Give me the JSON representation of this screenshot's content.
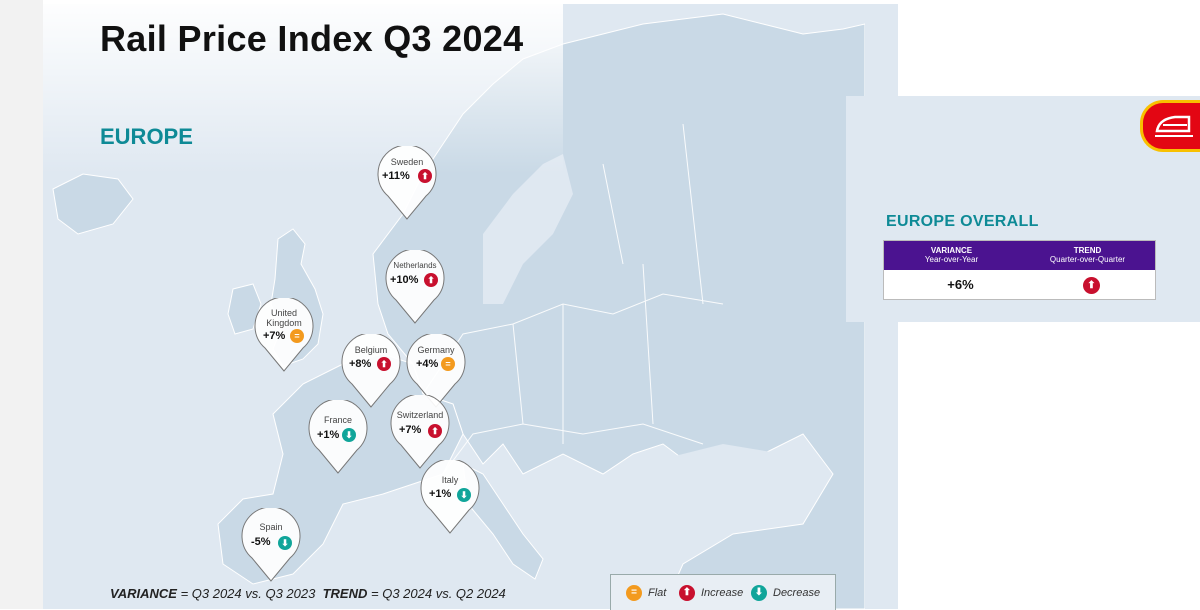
{
  "title": "Rail Price Index Q3 2024",
  "region": "EUROPE",
  "countries": [
    {
      "name": "Sweden",
      "variance": "+11%",
      "trend": "increase"
    },
    {
      "name": "Netherlands",
      "variance": "+10%",
      "trend": "increase"
    },
    {
      "name": "United Kingdom",
      "name_lines": [
        "United",
        "Kingdom"
      ],
      "variance": "+7%",
      "trend": "flat"
    },
    {
      "name": "Belgium",
      "variance": "+8%",
      "trend": "increase"
    },
    {
      "name": "Germany",
      "variance": "+4%",
      "trend": "flat"
    },
    {
      "name": "France",
      "variance": "+1%",
      "trend": "decrease"
    },
    {
      "name": "Switzerland",
      "variance": "+7%",
      "trend": "increase"
    },
    {
      "name": "Italy",
      "variance": "+1%",
      "trend": "decrease"
    },
    {
      "name": "Spain",
      "variance": "-5%",
      "trend": "decrease"
    }
  ],
  "footer": {
    "variance_label": "VARIANCE",
    "variance_def": "= Q3 2024 vs. Q3 2023",
    "trend_label": "TREND",
    "trend_def": "= Q3 2024 vs. Q2 2024"
  },
  "legend": {
    "flat": "Flat",
    "increase": "Increase",
    "decrease": "Decrease"
  },
  "overall": {
    "title": "EUROPE OVERALL",
    "col1_header": "VARIANCE",
    "col1_sub": "Year-over-Year",
    "col2_header": "TREND",
    "col2_sub": "Quarter-over-Quarter",
    "variance": "+6%",
    "trend": "increase"
  },
  "colors": {
    "increase": "#c8102e",
    "decrease": "#10a59a",
    "flat": "#f39a1e",
    "accent": "#0e8a96",
    "table_header": "#4b1390",
    "badge": "#e30613"
  },
  "icons": {
    "increase": "arrow-up-icon",
    "decrease": "arrow-down-icon",
    "flat": "equals-icon",
    "badge": "train-icon"
  }
}
